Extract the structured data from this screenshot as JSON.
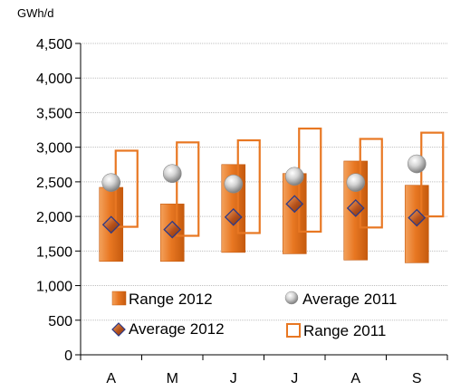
{
  "chart_data": {
    "type": "bar",
    "unit_label": "GWh/d",
    "categories": [
      "A",
      "M",
      "J",
      "J",
      "A",
      "S"
    ],
    "ylim": [
      0,
      4500
    ],
    "yticks": [
      0,
      500,
      1000,
      1500,
      2000,
      2500,
      3000,
      3500,
      4000,
      4500
    ],
    "ytick_labels": [
      "0",
      "500",
      "1,000",
      "1,500",
      "2,000",
      "2,500",
      "3,000",
      "3,500",
      "4,000",
      "4,500"
    ],
    "grid": true,
    "legend_placement": "bottom-inside",
    "series": [
      {
        "name": "Range 2012",
        "kind": "range-bar",
        "color": "#E87722",
        "low": [
          1350,
          1350,
          1480,
          1460,
          1370,
          1330
        ],
        "high": [
          2420,
          2180,
          2750,
          2620,
          2800,
          2450
        ]
      },
      {
        "name": "Range 2011",
        "kind": "range-outline",
        "color": "#E87722",
        "low": [
          1850,
          1720,
          1760,
          1780,
          1840,
          2000
        ],
        "high": [
          2950,
          3070,
          3100,
          3270,
          3120,
          3210
        ]
      },
      {
        "name": "Average 2012",
        "kind": "diamond-marker",
        "color": "#A0522D",
        "values": [
          1880,
          1810,
          1990,
          2180,
          2120,
          1980
        ]
      },
      {
        "name": "Average 2011",
        "kind": "sphere-marker",
        "color": "#BBBBBB",
        "values": [
          2490,
          2620,
          2470,
          2580,
          2490,
          2760
        ]
      }
    ]
  }
}
